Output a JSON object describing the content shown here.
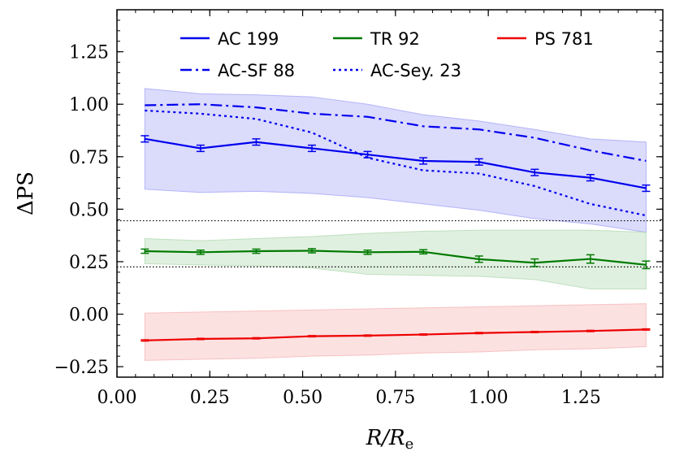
{
  "chart_data": {
    "type": "line",
    "xlabel": "R/Re",
    "ylabel": "ΔPS",
    "xlim": [
      0.0,
      1.47
    ],
    "ylim": [
      -0.3,
      1.45
    ],
    "xticks": [
      0.0,
      0.25,
      0.5,
      0.75,
      1.0,
      1.25
    ],
    "xtick_labels": [
      "0.00",
      "0.25",
      "0.50",
      "0.75",
      "1.00",
      "1.25"
    ],
    "yticks": [
      -0.25,
      0.0,
      0.25,
      0.5,
      0.75,
      1.0,
      1.25
    ],
    "ytick_labels": [
      "−0.25",
      "0.00",
      "0.25",
      "0.50",
      "0.75",
      "1.00",
      "1.25"
    ],
    "reference_lines": [
      0.445,
      0.225
    ],
    "legend_position": "top",
    "series": [
      {
        "name": "AC 199",
        "color": "#0000ee",
        "style": "solid",
        "x": [
          0.075,
          0.225,
          0.375,
          0.525,
          0.675,
          0.825,
          0.975,
          1.125,
          1.275,
          1.425
        ],
        "values": [
          0.835,
          0.79,
          0.82,
          0.79,
          0.76,
          0.73,
          0.725,
          0.675,
          0.65,
          0.6
        ],
        "errors": [
          0.015,
          0.015,
          0.015,
          0.015,
          0.015,
          0.015,
          0.015,
          0.015,
          0.015,
          0.015
        ],
        "band_lower": [
          0.595,
          0.58,
          0.585,
          0.575,
          0.555,
          0.525,
          0.495,
          0.455,
          0.43,
          0.39
        ],
        "band_upper": [
          1.075,
          1.05,
          1.045,
          1.035,
          1.0,
          0.95,
          0.92,
          0.88,
          0.835,
          0.82
        ],
        "band_color": "#8f8ff5"
      },
      {
        "name": "AC-SF 88",
        "color": "#0000ee",
        "style": "dashdot",
        "x": [
          0.075,
          0.225,
          0.375,
          0.525,
          0.675,
          0.825,
          0.975,
          1.125,
          1.275,
          1.425
        ],
        "values": [
          0.995,
          1.0,
          0.985,
          0.955,
          0.94,
          0.895,
          0.88,
          0.84,
          0.78,
          0.73
        ]
      },
      {
        "name": "AC-Sey. 23",
        "color": "#0000ee",
        "style": "dotted",
        "x": [
          0.075,
          0.225,
          0.375,
          0.525,
          0.675,
          0.825,
          0.975,
          1.125,
          1.275,
          1.425
        ],
        "values": [
          0.97,
          0.955,
          0.93,
          0.865,
          0.745,
          0.685,
          0.67,
          0.61,
          0.525,
          0.47
        ]
      },
      {
        "name": "TR 92",
        "color": "#007a00",
        "style": "solid",
        "x": [
          0.075,
          0.225,
          0.375,
          0.525,
          0.675,
          0.825,
          0.975,
          1.125,
          1.275,
          1.425
        ],
        "values": [
          0.3,
          0.295,
          0.3,
          0.302,
          0.295,
          0.297,
          0.262,
          0.245,
          0.263,
          0.235
        ],
        "errors": [
          0.01,
          0.01,
          0.01,
          0.01,
          0.01,
          0.01,
          0.015,
          0.018,
          0.02,
          0.018
        ],
        "band_lower": [
          0.24,
          0.235,
          0.23,
          0.22,
          0.19,
          0.185,
          0.18,
          0.165,
          0.12,
          0.12
        ],
        "band_upper": [
          0.36,
          0.35,
          0.36,
          0.37,
          0.385,
          0.395,
          0.4,
          0.4,
          0.4,
          0.39
        ],
        "band_color": "#9fd09f"
      },
      {
        "name": "PS 781",
        "color": "#ee0000",
        "style": "solid",
        "x": [
          0.075,
          0.225,
          0.375,
          0.525,
          0.675,
          0.825,
          0.975,
          1.125,
          1.275,
          1.425
        ],
        "values": [
          -0.125,
          -0.118,
          -0.115,
          -0.105,
          -0.102,
          -0.097,
          -0.09,
          -0.085,
          -0.08,
          -0.073
        ],
        "errors": [
          0.003,
          0.003,
          0.003,
          0.003,
          0.003,
          0.003,
          0.003,
          0.003,
          0.003,
          0.003
        ],
        "band_lower": [
          -0.22,
          -0.215,
          -0.21,
          -0.2,
          -0.195,
          -0.185,
          -0.18,
          -0.17,
          -0.165,
          -0.155
        ],
        "band_upper": [
          0.005,
          0.01,
          0.015,
          0.02,
          0.025,
          0.03,
          0.035,
          0.04,
          0.045,
          0.05
        ],
        "band_color": "#f5a3a3"
      }
    ]
  },
  "legend": {
    "items": [
      {
        "label": "AC 199",
        "color": "#0000ee",
        "style": "solid"
      },
      {
        "label": "TR 92",
        "color": "#007a00",
        "style": "solid"
      },
      {
        "label": "PS 781",
        "color": "#ee0000",
        "style": "solid"
      },
      {
        "label": "AC-SF 88",
        "color": "#0000ee",
        "style": "dashdot"
      },
      {
        "label": "AC-Sey. 23",
        "color": "#0000ee",
        "style": "dotted"
      }
    ]
  }
}
